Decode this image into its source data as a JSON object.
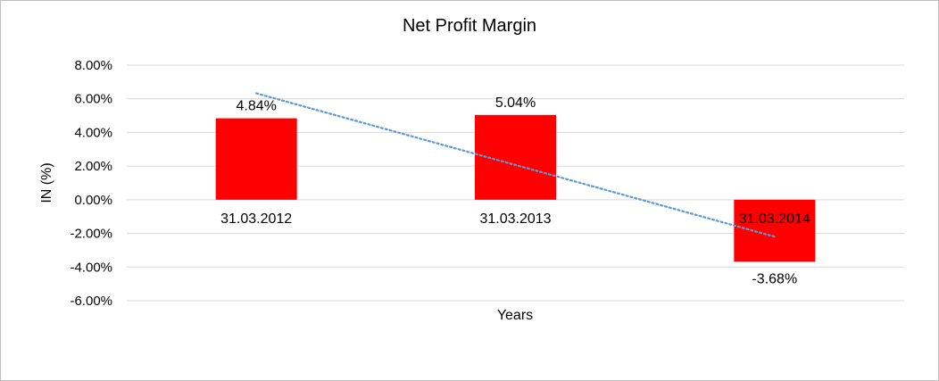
{
  "chart_data": {
    "type": "bar",
    "title": "Net Profit Margin",
    "xlabel": "Years",
    "ylabel": "IN (%)",
    "categories": [
      "31.03.2012",
      "31.03.2013",
      "31.03.2014"
    ],
    "series": [
      {
        "values": [
          4.84,
          5.04,
          -3.68
        ],
        "data_labels": [
          "4.84%",
          "5.04%",
          "-3.68%"
        ],
        "color": "#ff0000"
      }
    ],
    "ylim": [
      -6,
      8
    ],
    "yticks": [
      8,
      6,
      4,
      2,
      0,
      -2,
      -4,
      -6
    ],
    "ytick_labels": [
      "8.00%",
      "6.00%",
      "4.00%",
      "2.00%",
      "0.00%",
      "-2.00%",
      "-4.00%",
      "-6.00%"
    ],
    "trendline": {
      "type": "linear",
      "color": "#5b9bd5",
      "style": "dotted"
    },
    "grid": true,
    "legend": "none"
  }
}
